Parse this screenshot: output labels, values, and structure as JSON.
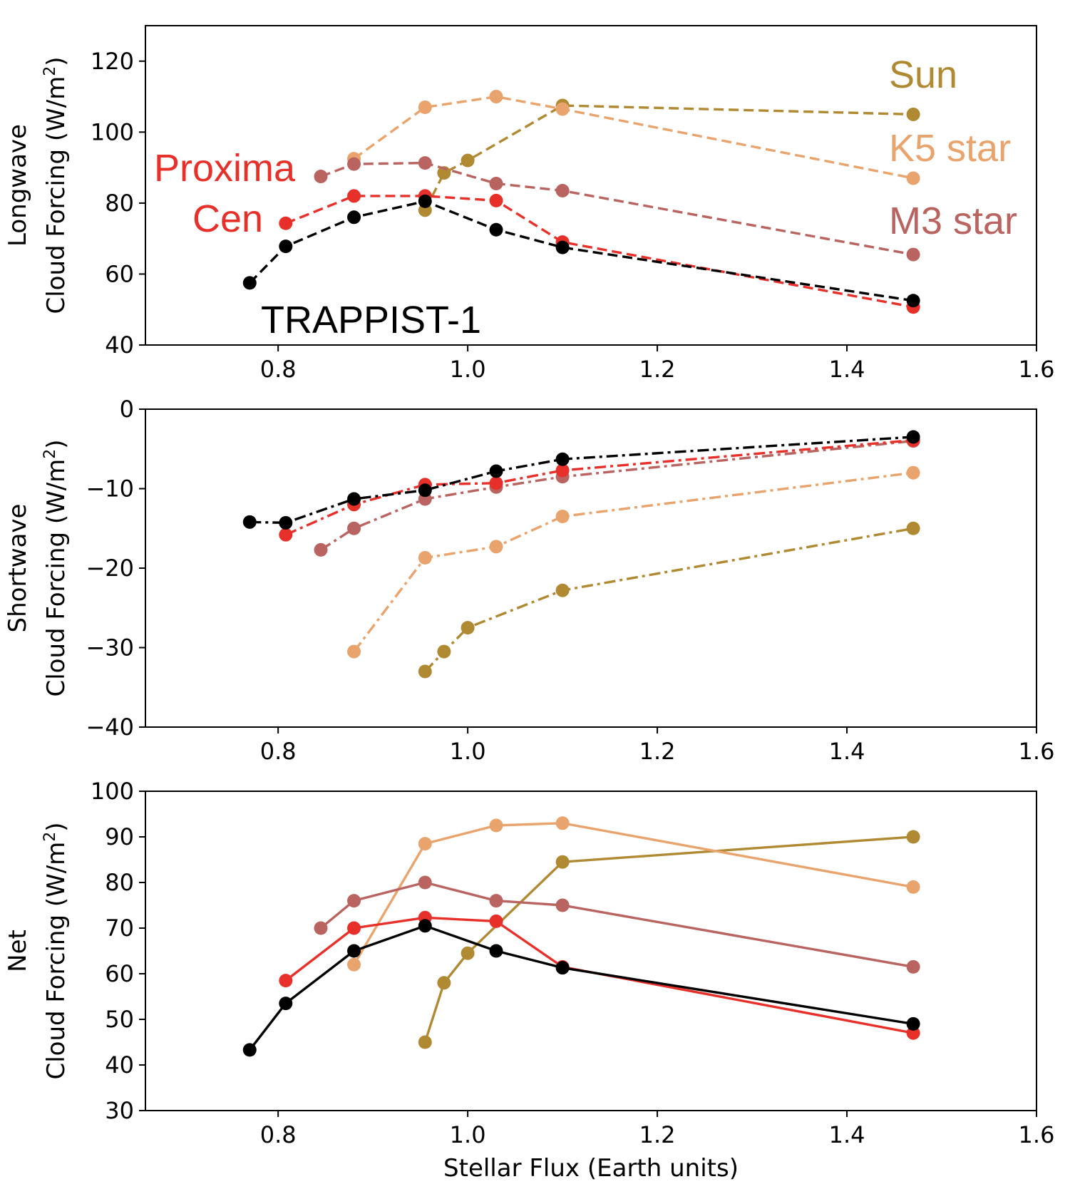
{
  "colors": {
    "TRAPPIST-1": "#000000",
    "Proxima Cen": "#e8302a",
    "M3 star": "#b96460",
    "K5 star": "#e9a46d",
    "Sun": "#b08a32"
  },
  "chart_data": [
    {
      "type": "line",
      "panel": "longwave",
      "ylabel_lines": [
        "Longwave",
        "Cloud Forcing (W/m",
        "2",
        ")"
      ],
      "xlim": [
        0.66,
        1.6
      ],
      "ylim": [
        40,
        130
      ],
      "xticks": [
        0.8,
        1.0,
        1.2,
        1.4,
        1.6
      ],
      "xtick_labels": [
        "0.8",
        "1.0",
        "1.2",
        "1.4",
        "1.6"
      ],
      "yticks": [
        40,
        60,
        80,
        100,
        120
      ],
      "ytick_labels": [
        "40",
        "60",
        "80",
        "100",
        "120"
      ],
      "line_style": "dashed",
      "series": [
        {
          "name": "Sun",
          "x": [
            0.955,
            0.975,
            1.0,
            1.1,
            1.47
          ],
          "values": [
            78,
            88.5,
            92,
            107.5,
            105
          ]
        },
        {
          "name": "K5 star",
          "x": [
            0.88,
            0.955,
            1.03,
            1.1,
            1.47
          ],
          "values": [
            92.5,
            107,
            110,
            106.5,
            87
          ]
        },
        {
          "name": "M3 star",
          "x": [
            0.845,
            0.88,
            0.955,
            1.03,
            1.1,
            1.47
          ],
          "values": [
            87.5,
            91,
            91.3,
            85.5,
            83.5,
            65.5
          ]
        },
        {
          "name": "Proxima Cen",
          "x": [
            0.808,
            0.88,
            0.955,
            1.03,
            1.1,
            1.47
          ],
          "values": [
            74.3,
            82,
            82,
            80.7,
            69,
            50.7
          ]
        },
        {
          "name": "TRAPPIST-1",
          "x": [
            0.77,
            0.808,
            0.88,
            0.955,
            1.03,
            1.1,
            1.47
          ],
          "values": [
            57.5,
            67.8,
            76,
            80.5,
            72.5,
            67.5,
            52.5
          ]
        }
      ],
      "annotations": [
        {
          "text": "Sun",
          "series": "Sun"
        },
        {
          "text": "K5 star",
          "series": "K5 star"
        },
        {
          "text": "Proxima",
          "series": "Proxima Cen"
        },
        {
          "text": "Cen",
          "series": "Proxima Cen"
        },
        {
          "text": "M3 star",
          "series": "M3 star"
        },
        {
          "text": "TRAPPIST-1",
          "series": "TRAPPIST-1"
        }
      ]
    },
    {
      "type": "line",
      "panel": "shortwave",
      "ylabel_lines": [
        "Shortwave",
        "Cloud Forcing (W/m",
        "2",
        ")"
      ],
      "xlim": [
        0.66,
        1.6
      ],
      "ylim": [
        -40,
        0
      ],
      "xticks": [
        0.8,
        1.0,
        1.2,
        1.4,
        1.6
      ],
      "xtick_labels": [
        "0.8",
        "1.0",
        "1.2",
        "1.4",
        "1.6"
      ],
      "yticks": [
        -40,
        -30,
        -20,
        -10,
        0
      ],
      "ytick_labels": [
        "−40",
        "−30",
        "−20",
        "−10",
        "0"
      ],
      "line_style": "dashdot",
      "series": [
        {
          "name": "Sun",
          "x": [
            0.955,
            0.975,
            1.0,
            1.1,
            1.47
          ],
          "values": [
            -33,
            -30.5,
            -27.5,
            -22.8,
            -15
          ]
        },
        {
          "name": "K5 star",
          "x": [
            0.88,
            0.955,
            1.03,
            1.1,
            1.47
          ],
          "values": [
            -30.5,
            -18.7,
            -17.3,
            -13.5,
            -8
          ]
        },
        {
          "name": "M3 star",
          "x": [
            0.845,
            0.88,
            0.955,
            1.03,
            1.1,
            1.47
          ],
          "values": [
            -17.7,
            -15,
            -11.3,
            -9.8,
            -8.5,
            -4
          ]
        },
        {
          "name": "Proxima Cen",
          "x": [
            0.808,
            0.88,
            0.955,
            1.03,
            1.1,
            1.47
          ],
          "values": [
            -15.8,
            -12,
            -9.5,
            -9.3,
            -7.7,
            -3.9
          ]
        },
        {
          "name": "TRAPPIST-1",
          "x": [
            0.77,
            0.808,
            0.88,
            0.955,
            1.03,
            1.1,
            1.47
          ],
          "values": [
            -14.2,
            -14.3,
            -11.3,
            -10.2,
            -7.8,
            -6.3,
            -3.5
          ]
        }
      ]
    },
    {
      "type": "line",
      "panel": "net",
      "ylabel_lines": [
        "Net",
        "Cloud Forcing (W/m",
        "2",
        ")"
      ],
      "xlabel": "Stellar Flux (Earth units)",
      "xlim": [
        0.66,
        1.6
      ],
      "ylim": [
        30,
        100
      ],
      "xticks": [
        0.8,
        1.0,
        1.2,
        1.4,
        1.6
      ],
      "xtick_labels": [
        "0.8",
        "1.0",
        "1.2",
        "1.4",
        "1.6"
      ],
      "yticks": [
        30,
        40,
        50,
        60,
        70,
        80,
        90,
        100
      ],
      "ytick_labels": [
        "30",
        "40",
        "50",
        "60",
        "70",
        "80",
        "90",
        "100"
      ],
      "line_style": "solid",
      "series": [
        {
          "name": "Sun",
          "x": [
            0.955,
            0.975,
            1.0,
            1.1,
            1.47
          ],
          "values": [
            45,
            58,
            64.5,
            84.5,
            90
          ]
        },
        {
          "name": "K5 star",
          "x": [
            0.88,
            0.955,
            1.03,
            1.1,
            1.47
          ],
          "values": [
            62,
            88.5,
            92.5,
            93,
            79
          ]
        },
        {
          "name": "M3 star",
          "x": [
            0.845,
            0.88,
            0.955,
            1.03,
            1.1,
            1.47
          ],
          "values": [
            70,
            76,
            80,
            76,
            75,
            61.5
          ]
        },
        {
          "name": "Proxima Cen",
          "x": [
            0.808,
            0.88,
            0.955,
            1.03,
            1.1,
            1.47
          ],
          "values": [
            58.5,
            70,
            72.3,
            71.5,
            61.5,
            47
          ]
        },
        {
          "name": "TRAPPIST-1",
          "x": [
            0.77,
            0.808,
            0.88,
            0.955,
            1.03,
            1.1,
            1.47
          ],
          "values": [
            43.3,
            53.5,
            65,
            70.5,
            65,
            61.3,
            49
          ]
        }
      ]
    }
  ]
}
